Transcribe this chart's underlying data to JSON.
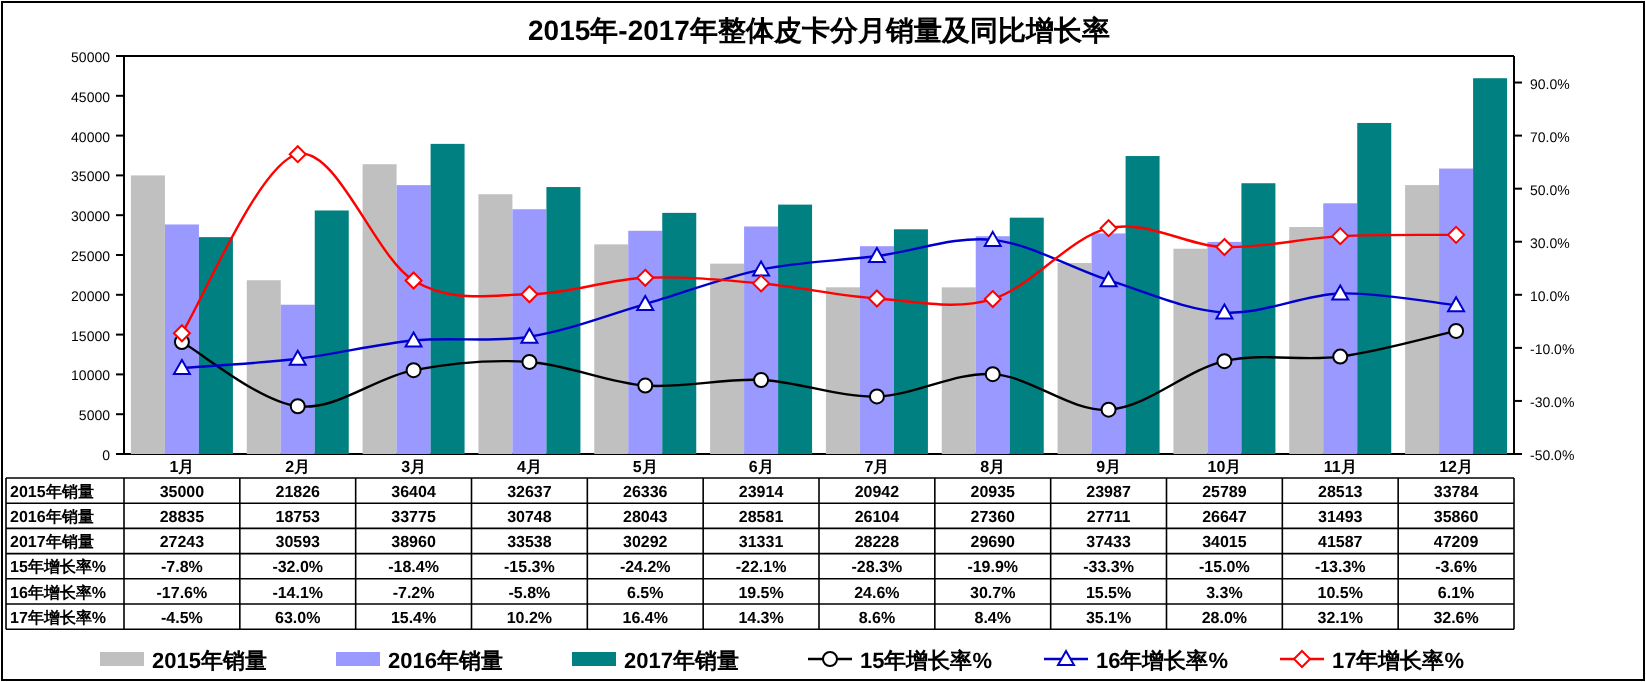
{
  "chart_data": {
    "type": "bar",
    "title": "2015年-2017年整体皮卡分月销量及同比增长率",
    "categories": [
      "1月",
      "2月",
      "3月",
      "4月",
      "5月",
      "6月",
      "7月",
      "8月",
      "9月",
      "10月",
      "11月",
      "12月"
    ],
    "series": [
      {
        "name": "2015年销量",
        "color": "#c0c0c0",
        "values": [
          35000,
          21826,
          36404,
          32637,
          26336,
          23914,
          20942,
          20935,
          23987,
          25789,
          28513,
          33784
        ],
        "value_labels": [
          "35000",
          "21826",
          "36404",
          "32637",
          "26336",
          "23914",
          "20942",
          "20935",
          "23987",
          "25789",
          "28513",
          "33784"
        ]
      },
      {
        "name": "2016年销量",
        "color": "#9999ff",
        "values": [
          28835,
          18753,
          33775,
          30748,
          28043,
          28581,
          26104,
          27360,
          27711,
          26647,
          31493,
          35860
        ],
        "value_labels": [
          "28835",
          "18753",
          "33775",
          "30748",
          "28043",
          "28581",
          "26104",
          "27360",
          "27711",
          "26647",
          "31493",
          "35860"
        ]
      },
      {
        "name": "2017年销量",
        "color": "#008080",
        "values": [
          27243,
          30593,
          38960,
          33538,
          30292,
          31331,
          28228,
          29690,
          37433,
          34015,
          41587,
          47209
        ],
        "value_labels": [
          "27243",
          "30593",
          "38960",
          "33538",
          "30292",
          "31331",
          "28228",
          "29690",
          "37433",
          "34015",
          "41587",
          "47209"
        ]
      },
      {
        "name": "15年增长率%",
        "type": "line",
        "axis": "y2",
        "marker": "circle",
        "color": "#000000",
        "values": [
          -7.8,
          -32.0,
          -18.4,
          -15.3,
          -24.2,
          -22.1,
          -28.3,
          -19.9,
          -33.3,
          -15.0,
          -13.3,
          -3.6
        ],
        "value_labels": [
          "-7.8%",
          "-32.0%",
          "-18.4%",
          "-15.3%",
          "-24.2%",
          "-22.1%",
          "-28.3%",
          "-19.9%",
          "-33.3%",
          "-15.0%",
          "-13.3%",
          "-3.6%"
        ]
      },
      {
        "name": "16年增长率%",
        "type": "line",
        "axis": "y2",
        "marker": "triangle",
        "color": "#0000cc",
        "values": [
          -17.6,
          -14.1,
          -7.2,
          -5.8,
          6.5,
          19.5,
          24.6,
          30.7,
          15.5,
          3.3,
          10.5,
          6.1
        ],
        "value_labels": [
          "-17.6%",
          "-14.1%",
          "-7.2%",
          "-5.8%",
          "6.5%",
          "19.5%",
          "24.6%",
          "30.7%",
          "15.5%",
          "3.3%",
          "10.5%",
          "6.1%"
        ]
      },
      {
        "name": "17年增长率%",
        "type": "line",
        "axis": "y2",
        "marker": "diamond",
        "color": "#ff0000",
        "values": [
          -4.5,
          63.0,
          15.4,
          10.2,
          16.4,
          14.3,
          8.6,
          8.4,
          35.1,
          28.0,
          32.1,
          32.6
        ],
        "value_labels": [
          "-4.5%",
          "63.0%",
          "15.4%",
          "10.2%",
          "16.4%",
          "14.3%",
          "8.6%",
          "8.4%",
          "35.1%",
          "28.0%",
          "32.1%",
          "32.6%"
        ]
      }
    ],
    "ylim": [
      0,
      50000
    ],
    "yticks": [
      0,
      5000,
      10000,
      15000,
      20000,
      25000,
      30000,
      35000,
      40000,
      45000,
      50000
    ],
    "y2lim": [
      -50,
      100
    ],
    "y2ticks": [
      {
        "value": -50,
        "label": "-50.0%"
      },
      {
        "value": -30,
        "label": "-30.0%"
      },
      {
        "value": -10,
        "label": "-10.0%"
      },
      {
        "value": 10,
        "label": "10.0%"
      },
      {
        "value": 30,
        "label": "30.0%"
      },
      {
        "value": 50,
        "label": "50.0%"
      },
      {
        "value": 70,
        "label": "70.0%"
      },
      {
        "value": 90,
        "label": "90.0%"
      }
    ],
    "grid": false,
    "legend": "bottom"
  }
}
